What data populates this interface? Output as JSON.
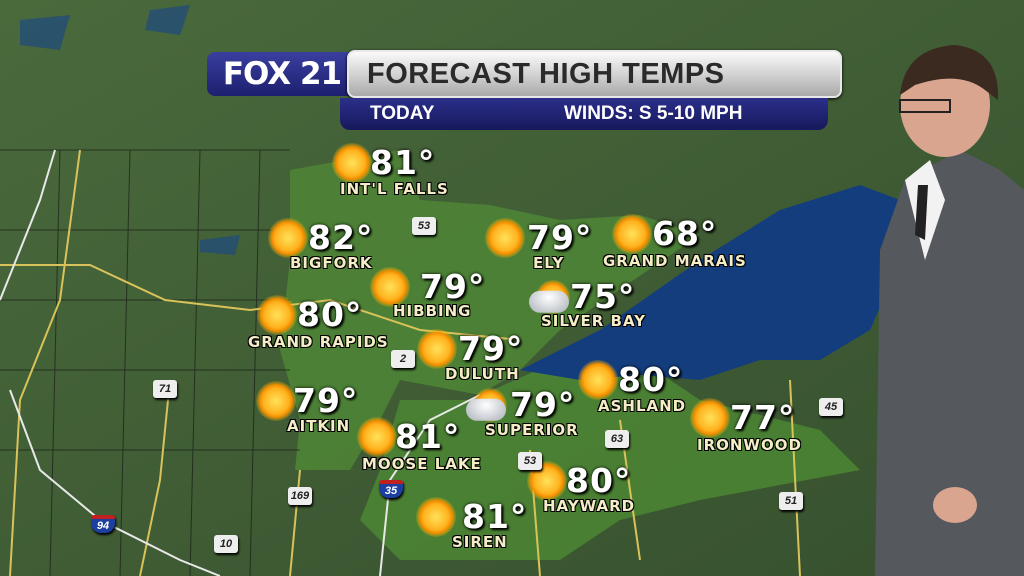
{
  "header": {
    "logo": "FOX 21",
    "title": "FORECAST HIGH TEMPS",
    "period": "TODAY",
    "winds": "WINDS: S 5-10 MPH"
  },
  "colors": {
    "header_blue": "#1d1f6e",
    "land": "#3d5a33",
    "highlight_land": "#4e8a35",
    "lake": "#123a7a",
    "label": "#f4edc8"
  },
  "cities": [
    {
      "name": "INT'L FALLS",
      "temp": "81°",
      "icon": "sun"
    },
    {
      "name": "BIGFORK",
      "temp": "82°",
      "icon": "sun"
    },
    {
      "name": "HIBBING",
      "temp": "79°",
      "icon": "sun"
    },
    {
      "name": "GRAND RAPIDS",
      "temp": "80°",
      "icon": "sun"
    },
    {
      "name": "DULUTH",
      "temp": "79°",
      "icon": "sun"
    },
    {
      "name": "AITKIN",
      "temp": "79°",
      "icon": "sun"
    },
    {
      "name": "MOOSE LAKE",
      "temp": "81°",
      "icon": "sun"
    },
    {
      "name": "SUPERIOR",
      "temp": "79°",
      "icon": "partly-cloudy"
    },
    {
      "name": "ELY",
      "temp": "79°",
      "icon": "sun"
    },
    {
      "name": "GRAND MARAIS",
      "temp": "68°",
      "icon": "sun"
    },
    {
      "name": "SILVER BAY",
      "temp": "75°",
      "icon": "partly-cloudy"
    },
    {
      "name": "ASHLAND",
      "temp": "80°",
      "icon": "sun"
    },
    {
      "name": "IRONWOOD",
      "temp": "77°",
      "icon": "sun"
    },
    {
      "name": "HAYWARD",
      "temp": "80°",
      "icon": "sun"
    },
    {
      "name": "SIREN",
      "temp": "81°",
      "icon": "sun"
    }
  ],
  "routes": [
    "53",
    "2",
    "71",
    "169",
    "35",
    "94",
    "10",
    "63",
    "53",
    "45",
    "51"
  ]
}
